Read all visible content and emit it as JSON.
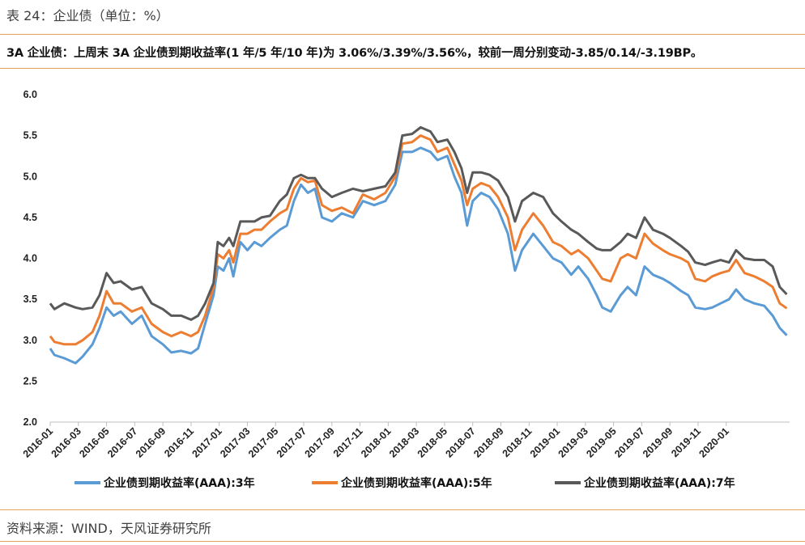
{
  "header": {
    "caption": "表 24：企业债（单位：%）",
    "summary": "3A 企业债：上周末 3A 企业债到期收益率(1 年/5 年/10 年)为 3.06%/3.39%/3.56%，较前一周分别变动-3.85/0.14/-3.19BP。"
  },
  "footer": {
    "source": "资料来源：WIND，天风证券研究所"
  },
  "chart_data": {
    "type": "line",
    "title": "",
    "xlabel": "",
    "ylabel": "",
    "ylim": [
      2.0,
      6.0
    ],
    "yticks": [
      "6.0",
      "5.5",
      "5.0",
      "4.5",
      "4.0",
      "3.5",
      "3.0",
      "2.5",
      "2.0"
    ],
    "x_range_months": [
      0,
      52.5
    ],
    "xticks": [
      "2016-01",
      "2016-03",
      "2016-05",
      "2016-07",
      "2016-09",
      "2016-11",
      "2017-01",
      "2017-03",
      "2017-05",
      "2017-07",
      "2017-09",
      "2017-11",
      "2018-01",
      "2018-03",
      "2018-05",
      "2018-07",
      "2018-09",
      "2018-11",
      "2019-01",
      "2019-03",
      "2019-05",
      "2019-07",
      "2019-09",
      "2019-11",
      "2020-01"
    ],
    "legend_position": "bottom",
    "x_unit": "months since 2016-01",
    "series": [
      {
        "name": "企业债到期收益率(AAA):3年",
        "color": "#5b9bd5",
        "points": [
          [
            0,
            2.9
          ],
          [
            0.3,
            2.82
          ],
          [
            1,
            2.78
          ],
          [
            1.8,
            2.72
          ],
          [
            2.3,
            2.8
          ],
          [
            3,
            2.95
          ],
          [
            3.5,
            3.15
          ],
          [
            4,
            3.4
          ],
          [
            4.5,
            3.3
          ],
          [
            5,
            3.35
          ],
          [
            5.8,
            3.2
          ],
          [
            6.5,
            3.3
          ],
          [
            7.2,
            3.05
          ],
          [
            8,
            2.95
          ],
          [
            8.6,
            2.85
          ],
          [
            9.3,
            2.87
          ],
          [
            10,
            2.84
          ],
          [
            10.5,
            2.9
          ],
          [
            11,
            3.2
          ],
          [
            11.6,
            3.55
          ],
          [
            11.9,
            3.9
          ],
          [
            12.3,
            3.85
          ],
          [
            12.7,
            4.0
          ],
          [
            13,
            3.78
          ],
          [
            13.5,
            4.2
          ],
          [
            14,
            4.1
          ],
          [
            14.5,
            4.2
          ],
          [
            15,
            4.15
          ],
          [
            15.6,
            4.25
          ],
          [
            16.3,
            4.35
          ],
          [
            16.8,
            4.4
          ],
          [
            17.3,
            4.7
          ],
          [
            17.8,
            4.9
          ],
          [
            18.3,
            4.8
          ],
          [
            18.8,
            4.85
          ],
          [
            19.3,
            4.5
          ],
          [
            20,
            4.45
          ],
          [
            20.7,
            4.55
          ],
          [
            21.5,
            4.5
          ],
          [
            22.2,
            4.7
          ],
          [
            23,
            4.65
          ],
          [
            23.8,
            4.7
          ],
          [
            24.5,
            4.9
          ],
          [
            25,
            5.3
          ],
          [
            25.7,
            5.3
          ],
          [
            26.3,
            5.35
          ],
          [
            27,
            5.3
          ],
          [
            27.5,
            5.2
          ],
          [
            28.2,
            5.25
          ],
          [
            28.7,
            5.0
          ],
          [
            29.2,
            4.8
          ],
          [
            29.6,
            4.4
          ],
          [
            30,
            4.7
          ],
          [
            30.6,
            4.8
          ],
          [
            31.2,
            4.75
          ],
          [
            31.8,
            4.6
          ],
          [
            32.5,
            4.3
          ],
          [
            33,
            3.85
          ],
          [
            33.5,
            4.1
          ],
          [
            34.3,
            4.3
          ],
          [
            35,
            4.15
          ],
          [
            35.7,
            4.0
          ],
          [
            36.3,
            3.95
          ],
          [
            37,
            3.8
          ],
          [
            37.5,
            3.9
          ],
          [
            38.2,
            3.75
          ],
          [
            38.8,
            3.55
          ],
          [
            39.2,
            3.4
          ],
          [
            39.8,
            3.35
          ],
          [
            40.5,
            3.55
          ],
          [
            41,
            3.65
          ],
          [
            41.6,
            3.55
          ],
          [
            42.2,
            3.9
          ],
          [
            42.8,
            3.8
          ],
          [
            43.5,
            3.75
          ],
          [
            44,
            3.7
          ],
          [
            44.8,
            3.6
          ],
          [
            45.3,
            3.55
          ],
          [
            45.8,
            3.4
          ],
          [
            46.5,
            3.38
          ],
          [
            47,
            3.4
          ],
          [
            47.6,
            3.45
          ],
          [
            48.2,
            3.5
          ],
          [
            48.7,
            3.62
          ],
          [
            49.3,
            3.5
          ],
          [
            50,
            3.45
          ],
          [
            50.7,
            3.42
          ],
          [
            51.3,
            3.3
          ],
          [
            51.8,
            3.15
          ],
          [
            52.3,
            3.06
          ]
        ]
      },
      {
        "name": "企业债到期收益率(AAA):5年",
        "color": "#ed7d31",
        "points": [
          [
            0,
            3.05
          ],
          [
            0.3,
            2.98
          ],
          [
            1,
            2.95
          ],
          [
            1.8,
            2.95
          ],
          [
            2.3,
            3.0
          ],
          [
            3,
            3.1
          ],
          [
            3.5,
            3.3
          ],
          [
            4,
            3.6
          ],
          [
            4.5,
            3.45
          ],
          [
            5,
            3.45
          ],
          [
            5.8,
            3.35
          ],
          [
            6.5,
            3.4
          ],
          [
            7.2,
            3.2
          ],
          [
            8,
            3.1
          ],
          [
            8.6,
            3.05
          ],
          [
            9.3,
            3.1
          ],
          [
            10,
            3.05
          ],
          [
            10.5,
            3.1
          ],
          [
            11,
            3.3
          ],
          [
            11.6,
            3.65
          ],
          [
            11.9,
            4.05
          ],
          [
            12.3,
            4.0
          ],
          [
            12.7,
            4.1
          ],
          [
            13,
            3.95
          ],
          [
            13.5,
            4.3
          ],
          [
            14,
            4.3
          ],
          [
            14.5,
            4.35
          ],
          [
            15,
            4.35
          ],
          [
            15.6,
            4.45
          ],
          [
            16.3,
            4.55
          ],
          [
            16.8,
            4.6
          ],
          [
            17.3,
            4.85
          ],
          [
            17.8,
            4.98
          ],
          [
            18.3,
            4.93
          ],
          [
            18.8,
            4.95
          ],
          [
            19.3,
            4.65
          ],
          [
            20,
            4.58
          ],
          [
            20.7,
            4.62
          ],
          [
            21.5,
            4.55
          ],
          [
            22.2,
            4.78
          ],
          [
            23,
            4.72
          ],
          [
            23.8,
            4.8
          ],
          [
            24.5,
            5.0
          ],
          [
            25,
            5.4
          ],
          [
            25.7,
            5.42
          ],
          [
            26.3,
            5.5
          ],
          [
            27,
            5.45
          ],
          [
            27.5,
            5.3
          ],
          [
            28.2,
            5.35
          ],
          [
            28.7,
            5.15
          ],
          [
            29.2,
            4.95
          ],
          [
            29.6,
            4.65
          ],
          [
            30,
            4.85
          ],
          [
            30.6,
            4.92
          ],
          [
            31.2,
            4.88
          ],
          [
            31.8,
            4.75
          ],
          [
            32.5,
            4.5
          ],
          [
            33,
            4.1
          ],
          [
            33.5,
            4.35
          ],
          [
            34.3,
            4.55
          ],
          [
            35,
            4.4
          ],
          [
            35.7,
            4.2
          ],
          [
            36.3,
            4.15
          ],
          [
            37,
            4.05
          ],
          [
            37.5,
            4.1
          ],
          [
            38.2,
            4.0
          ],
          [
            38.8,
            3.85
          ],
          [
            39.2,
            3.75
          ],
          [
            39.8,
            3.72
          ],
          [
            40.5,
            4.0
          ],
          [
            41,
            4.05
          ],
          [
            41.6,
            4.0
          ],
          [
            42.2,
            4.3
          ],
          [
            42.8,
            4.18
          ],
          [
            43.5,
            4.1
          ],
          [
            44,
            4.05
          ],
          [
            44.8,
            4.0
          ],
          [
            45.3,
            3.95
          ],
          [
            45.8,
            3.75
          ],
          [
            46.5,
            3.72
          ],
          [
            47,
            3.78
          ],
          [
            47.6,
            3.82
          ],
          [
            48.2,
            3.85
          ],
          [
            48.7,
            3.98
          ],
          [
            49.3,
            3.82
          ],
          [
            50,
            3.78
          ],
          [
            50.7,
            3.72
          ],
          [
            51.3,
            3.65
          ],
          [
            51.8,
            3.45
          ],
          [
            52.3,
            3.39
          ]
        ]
      },
      {
        "name": "企业债到期收益率(AAA):7年",
        "color": "#595959",
        "points": [
          [
            0,
            3.45
          ],
          [
            0.3,
            3.38
          ],
          [
            1,
            3.45
          ],
          [
            1.8,
            3.4
          ],
          [
            2.3,
            3.38
          ],
          [
            3,
            3.4
          ],
          [
            3.5,
            3.55
          ],
          [
            4,
            3.82
          ],
          [
            4.5,
            3.7
          ],
          [
            5,
            3.72
          ],
          [
            5.8,
            3.62
          ],
          [
            6.5,
            3.65
          ],
          [
            7.2,
            3.45
          ],
          [
            8,
            3.38
          ],
          [
            8.6,
            3.3
          ],
          [
            9.3,
            3.3
          ],
          [
            10,
            3.25
          ],
          [
            10.5,
            3.3
          ],
          [
            11,
            3.45
          ],
          [
            11.6,
            3.7
          ],
          [
            11.9,
            4.2
          ],
          [
            12.3,
            4.15
          ],
          [
            12.7,
            4.25
          ],
          [
            13,
            4.15
          ],
          [
            13.5,
            4.45
          ],
          [
            14,
            4.45
          ],
          [
            14.5,
            4.45
          ],
          [
            15,
            4.5
          ],
          [
            15.6,
            4.52
          ],
          [
            16.3,
            4.7
          ],
          [
            16.8,
            4.78
          ],
          [
            17.3,
            4.98
          ],
          [
            17.8,
            5.02
          ],
          [
            18.3,
            4.98
          ],
          [
            18.8,
            4.98
          ],
          [
            19.3,
            4.85
          ],
          [
            20,
            4.75
          ],
          [
            20.7,
            4.8
          ],
          [
            21.5,
            4.85
          ],
          [
            22.2,
            4.82
          ],
          [
            23,
            4.85
          ],
          [
            23.8,
            4.88
          ],
          [
            24.5,
            5.05
          ],
          [
            25,
            5.5
          ],
          [
            25.7,
            5.52
          ],
          [
            26.3,
            5.6
          ],
          [
            27,
            5.55
          ],
          [
            27.5,
            5.42
          ],
          [
            28.2,
            5.45
          ],
          [
            28.7,
            5.3
          ],
          [
            29.2,
            5.1
          ],
          [
            29.6,
            4.8
          ],
          [
            30,
            5.05
          ],
          [
            30.6,
            5.05
          ],
          [
            31.2,
            5.02
          ],
          [
            31.8,
            4.95
          ],
          [
            32.5,
            4.75
          ],
          [
            33,
            4.45
          ],
          [
            33.5,
            4.7
          ],
          [
            34.3,
            4.8
          ],
          [
            35,
            4.75
          ],
          [
            35.7,
            4.55
          ],
          [
            36.3,
            4.45
          ],
          [
            37,
            4.35
          ],
          [
            37.5,
            4.3
          ],
          [
            38.2,
            4.2
          ],
          [
            38.8,
            4.12
          ],
          [
            39.2,
            4.1
          ],
          [
            39.8,
            4.1
          ],
          [
            40.5,
            4.2
          ],
          [
            41,
            4.3
          ],
          [
            41.6,
            4.25
          ],
          [
            42.2,
            4.5
          ],
          [
            42.8,
            4.35
          ],
          [
            43.5,
            4.3
          ],
          [
            44,
            4.25
          ],
          [
            44.8,
            4.15
          ],
          [
            45.3,
            4.08
          ],
          [
            45.8,
            3.95
          ],
          [
            46.5,
            3.92
          ],
          [
            47,
            3.95
          ],
          [
            47.6,
            3.98
          ],
          [
            48.2,
            3.95
          ],
          [
            48.7,
            4.1
          ],
          [
            49.3,
            4.0
          ],
          [
            50,
            3.98
          ],
          [
            50.7,
            3.98
          ],
          [
            51.3,
            3.9
          ],
          [
            51.8,
            3.65
          ],
          [
            52.3,
            3.56
          ]
        ]
      }
    ]
  }
}
